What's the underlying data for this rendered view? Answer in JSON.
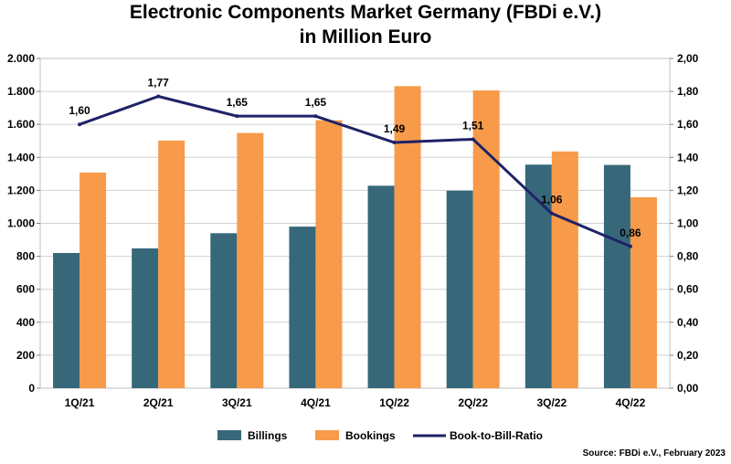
{
  "title_line1": "Electronic Components Market Germany (FBDi e.V.)",
  "title_line2": "in Million Euro",
  "source": "Source: FBDi e.V., February 2023",
  "colors": {
    "billings": "#36687A",
    "bookings": "#F79A4A",
    "ratio": "#1F2267",
    "grid": "#D0D0D0",
    "plot_border": "#BFBFBF"
  },
  "chart_data": {
    "type": "bar",
    "categories": [
      "1Q/21",
      "2Q/21",
      "3Q/21",
      "4Q/21",
      "1Q/22",
      "2Q/22",
      "3Q/22",
      "4Q/22"
    ],
    "series": [
      {
        "name": "Billings",
        "type": "bar",
        "axis": "left",
        "values": [
          820,
          848,
          940,
          980,
          1228,
          1198,
          1356,
          1354
        ]
      },
      {
        "name": "Bookings",
        "type": "bar",
        "axis": "left",
        "values": [
          1308,
          1502,
          1548,
          1625,
          1832,
          1806,
          1436,
          1158
        ]
      },
      {
        "name": "Book-to-Bill-Ratio",
        "type": "line",
        "axis": "right",
        "values": [
          1.6,
          1.77,
          1.65,
          1.65,
          1.49,
          1.51,
          1.06,
          0.86
        ],
        "labels": [
          "1,60",
          "1,77",
          "1,65",
          "1,65",
          "1,49",
          "1,51",
          "1,06",
          "0,86"
        ]
      }
    ],
    "y_left": {
      "ylim": [
        0,
        2000
      ],
      "ticks": [
        0,
        200,
        400,
        600,
        800,
        1000,
        1200,
        1400,
        1600,
        1800,
        2000
      ],
      "tick_labels": [
        "0",
        "200",
        "400",
        "600",
        "800",
        "1.000",
        "1.200",
        "1.400",
        "1.600",
        "1.800",
        "2.000"
      ]
    },
    "y_right": {
      "ylim": [
        0,
        2
      ],
      "ticks": [
        0,
        0.2,
        0.4,
        0.6,
        0.8,
        1.0,
        1.2,
        1.4,
        1.6,
        1.8,
        2.0
      ],
      "tick_labels": [
        "0,00",
        "0,20",
        "0,40",
        "0,60",
        "0,80",
        "1,00",
        "1,20",
        "1,40",
        "1,60",
        "1,80",
        "2,00"
      ]
    },
    "grid": true,
    "legend_position": "bottom-center",
    "legend": [
      "Billings",
      "Bookings",
      "Book-to-Bill-Ratio"
    ]
  }
}
